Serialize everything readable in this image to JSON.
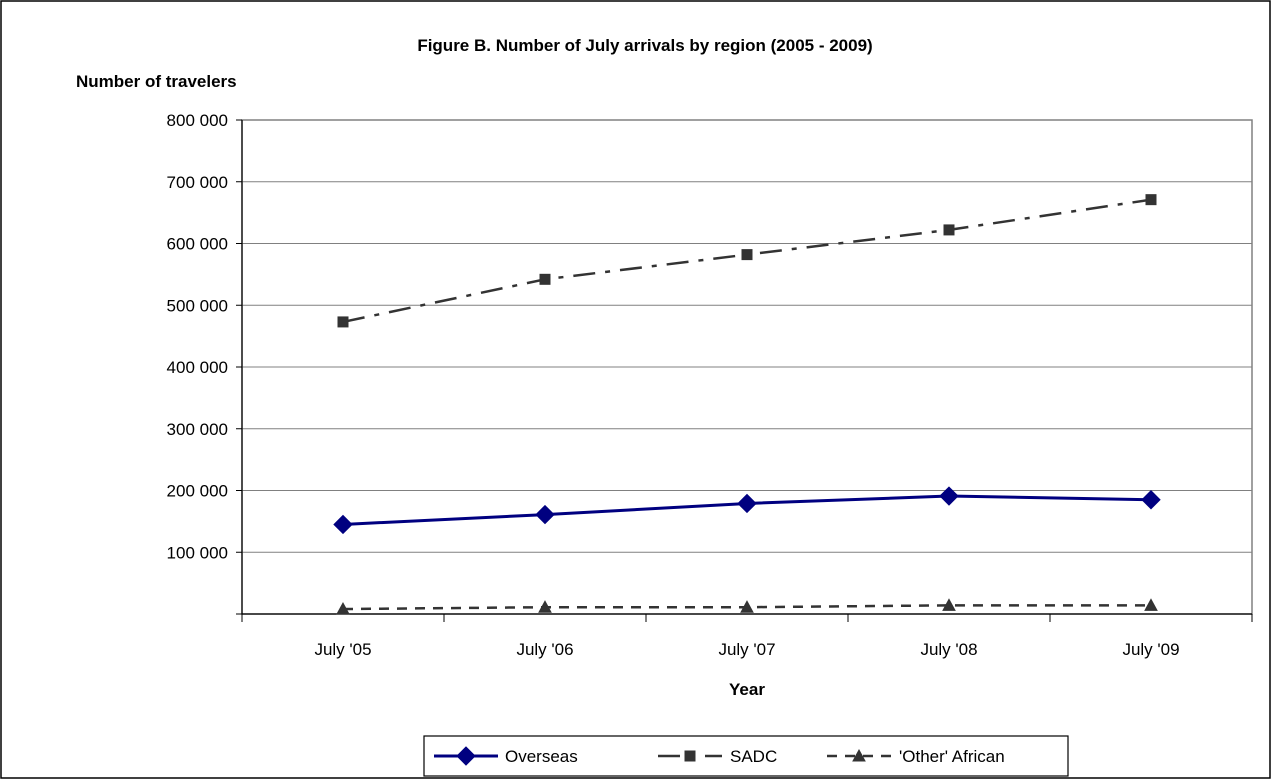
{
  "chart_data": {
    "type": "line",
    "title": "Figure B. Number of July arrivals by region (2005 - 2009)",
    "ylabel": "Number of travelers",
    "xlabel": "Year",
    "ylim": [
      0,
      800000
    ],
    "yticks": [
      {
        "value": 0,
        "label": ""
      },
      {
        "value": 100000,
        "label": "100 000"
      },
      {
        "value": 200000,
        "label": "200 000"
      },
      {
        "value": 300000,
        "label": "300 000"
      },
      {
        "value": 400000,
        "label": "400 000"
      },
      {
        "value": 500000,
        "label": "500 000"
      },
      {
        "value": 600000,
        "label": "600 000"
      },
      {
        "value": 700000,
        "label": "700 000"
      },
      {
        "value": 800000,
        "label": "800 000"
      }
    ],
    "categories": [
      "July '05",
      "July '06",
      "July '07",
      "July '08",
      "July '09"
    ],
    "grid": true,
    "legend_position": "bottom",
    "series": [
      {
        "name": "Overseas",
        "values": [
          145000,
          161000,
          179000,
          191000,
          185000
        ],
        "color": "#000080",
        "dash": "solid",
        "marker": "diamond"
      },
      {
        "name": "SADC",
        "values": [
          473000,
          542000,
          582000,
          622000,
          671000
        ],
        "color": "#333333",
        "dash": "dashdot",
        "marker": "square"
      },
      {
        "name": "'Other' African",
        "values": [
          8000,
          11000,
          11000,
          14000,
          14000
        ],
        "color": "#333333",
        "dash": "dash",
        "marker": "triangle"
      }
    ]
  }
}
